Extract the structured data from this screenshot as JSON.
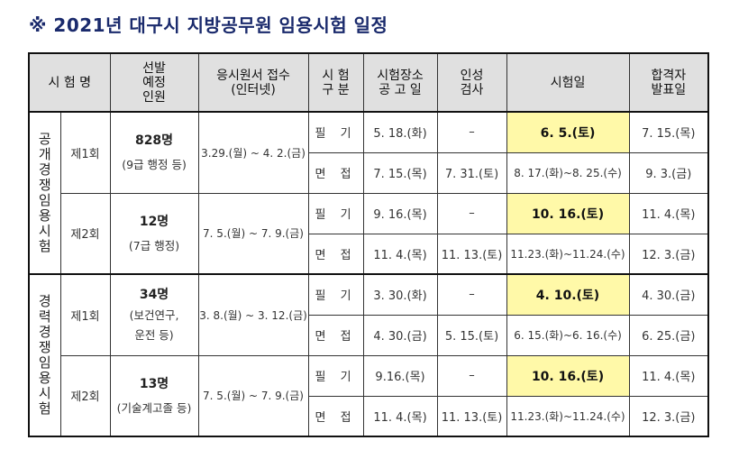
{
  "title": "※ 2021년 대구시 지방공무원 임용시험 일정",
  "headers": {
    "exam_name": "시 험 명",
    "quota": [
      "선발",
      "예정",
      "인원"
    ],
    "application": [
      "응시원서 접수",
      "(인터넷)"
    ],
    "category": [
      "시 험",
      "구 분"
    ],
    "venue_notice": [
      "시험장소",
      "공 고 일"
    ],
    "personality_test": [
      "인성",
      "검사"
    ],
    "exam_date": "시험일",
    "result_date": [
      "합격자",
      "발표일"
    ]
  },
  "groups": [
    {
      "name": [
        "공",
        "개",
        "경",
        "쟁",
        "임",
        "용",
        "시",
        "험"
      ],
      "rounds": [
        {
          "round": "제1회",
          "count": "828명",
          "detail": [
            "(9급 행정 등)"
          ],
          "application": "3.29.(월) ~ 4. 2.(금)",
          "rows": [
            {
              "kind": "필 기",
              "notice": "5. 18.(화)",
              "personality": "–",
              "exam": "6. 5.(토)",
              "result": "7. 15.(목)"
            },
            {
              "kind": "면 접",
              "notice": "7. 15.(목)",
              "personality": "7. 31.(토)",
              "exam": "8. 17.(화)~8. 25.(수)",
              "result": "9. 3.(금)"
            }
          ]
        },
        {
          "round": "제2회",
          "count": "12명",
          "detail": [
            "(7급 행정)"
          ],
          "application": "7. 5.(월) ~ 7. 9.(금)",
          "rows": [
            {
              "kind": "필 기",
              "notice": "9. 16.(목)",
              "personality": "–",
              "exam": "10. 16.(토)",
              "result": "11. 4.(목)"
            },
            {
              "kind": "면 접",
              "notice": "11. 4.(목)",
              "personality": "11. 13.(토)",
              "exam": "11.23.(화)~11.24.(수)",
              "result": "12. 3.(금)"
            }
          ]
        }
      ]
    },
    {
      "name": [
        "경",
        "력",
        "경",
        "쟁",
        "임",
        "용",
        "시",
        "험"
      ],
      "rounds": [
        {
          "round": "제1회",
          "count": "34명",
          "detail": [
            "(보건연구,",
            "운전 등)"
          ],
          "application": "3. 8.(월) ~ 3. 12.(금)",
          "rows": [
            {
              "kind": "필 기",
              "notice": "3. 30.(화)",
              "personality": "–",
              "exam": "4. 10.(토)",
              "result": "4. 30.(금)"
            },
            {
              "kind": "면 접",
              "notice": "4. 30.(금)",
              "personality": "5. 15.(토)",
              "exam": "6. 15.(화)~6. 16.(수)",
              "result": "6. 25.(금)"
            }
          ]
        },
        {
          "round": "제2회",
          "count": "13명",
          "detail": [
            "(기술계고졸 등)"
          ],
          "application": "7. 5.(월) ~ 7. 9.(금)",
          "rows": [
            {
              "kind": "필 기",
              "notice": "9.16.(목)",
              "personality": "–",
              "exam": "10. 16.(토)",
              "result": "11. 4.(목)"
            },
            {
              "kind": "면 접",
              "notice": "11. 4.(목)",
              "personality": "11. 13.(토)",
              "exam": "11.23.(화)~11.24.(수)",
              "result": "12. 3.(금)"
            }
          ]
        }
      ]
    }
  ]
}
